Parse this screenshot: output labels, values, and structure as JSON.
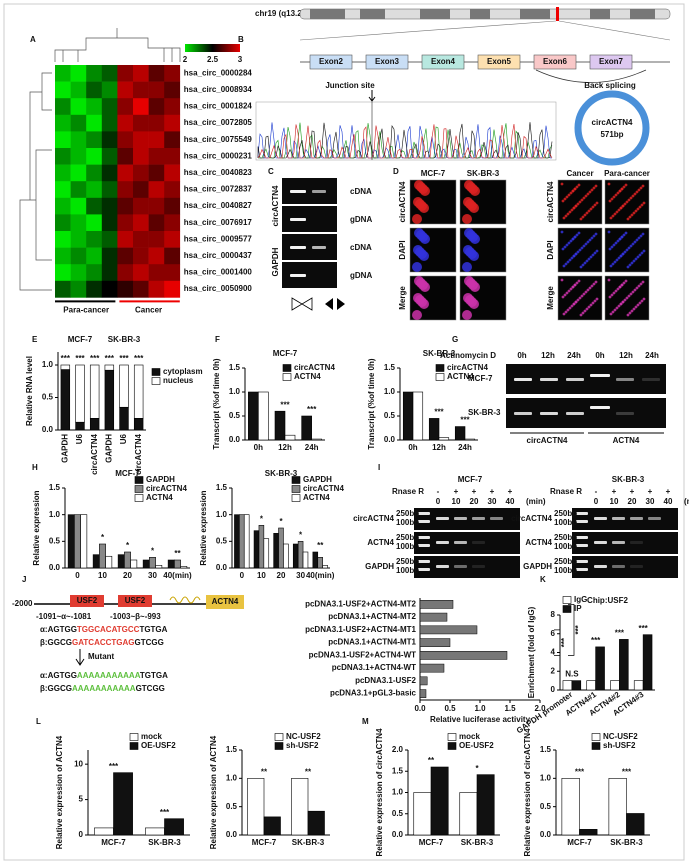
{
  "panel_letters": [
    "A",
    "B",
    "C",
    "D",
    "E",
    "F",
    "G",
    "H",
    "I",
    "J",
    "K",
    "L",
    "M"
  ],
  "heatmap": {
    "scale_ticks": [
      2,
      2.5,
      3
    ],
    "rows": [
      "hsa_circ_0000284",
      "hsa_circ_0008934",
      "hsa_circ_0001824",
      "hsa_circ_0072805",
      "hsa_circ_0075549",
      "hsa_circ_0000231",
      "hsa_circ_0040823",
      "hsa_circ_0072837",
      "hsa_circ_0040827",
      "hsa_circ_0076917",
      "hsa_circ_0009577",
      "hsa_circ_0000437",
      "hsa_circ_0001400",
      "hsa_circ_0050900"
    ],
    "groups": [
      "Para-cancer",
      "Cancer"
    ],
    "values": [
      [
        2.1,
        2.0,
        2.2,
        2.3,
        2.8,
        2.9,
        2.7,
        2.8
      ],
      [
        2.0,
        2.1,
        2.3,
        2.2,
        2.9,
        2.8,
        2.8,
        2.7
      ],
      [
        2.2,
        2.0,
        2.1,
        2.3,
        2.8,
        3.0,
        2.7,
        2.8
      ],
      [
        2.1,
        2.2,
        2.0,
        2.3,
        2.9,
        2.8,
        2.8,
        2.9
      ],
      [
        2.0,
        2.1,
        2.2,
        2.4,
        2.8,
        2.9,
        2.9,
        2.7
      ],
      [
        2.2,
        2.1,
        2.0,
        2.3,
        2.7,
        2.9,
        2.8,
        2.8
      ],
      [
        2.1,
        2.0,
        2.2,
        2.4,
        2.9,
        2.8,
        2.7,
        2.9
      ],
      [
        2.0,
        2.2,
        2.1,
        2.3,
        2.8,
        2.7,
        2.9,
        2.8
      ],
      [
        2.1,
        2.0,
        2.3,
        2.4,
        2.7,
        2.8,
        2.8,
        2.7
      ],
      [
        2.2,
        2.1,
        2.0,
        2.4,
        2.8,
        2.9,
        2.7,
        2.8
      ],
      [
        2.0,
        2.1,
        2.2,
        2.3,
        2.9,
        2.8,
        2.8,
        2.9
      ],
      [
        2.1,
        2.2,
        2.1,
        2.4,
        2.7,
        2.8,
        2.9,
        2.7
      ],
      [
        2.0,
        2.1,
        2.2,
        2.4,
        2.8,
        2.9,
        2.8,
        2.8
      ],
      [
        2.3,
        2.2,
        2.4,
        2.5,
        2.6,
        2.7,
        2.9,
        3.0
      ]
    ]
  },
  "splicing": {
    "chromosome": "chr19 (q13.2)",
    "exons": [
      "Exon2",
      "Exon3",
      "Exon4",
      "Exon5",
      "Exon6",
      "Exon7"
    ],
    "junction": "Junction site",
    "back_splicing": "Back splicing",
    "circle_name": "circACTN4",
    "circle_size": "571bp"
  },
  "gel_c": {
    "genes": [
      "circACTN4",
      "GAPDH"
    ],
    "rows": [
      "cDNA",
      "gDNA",
      "cDNA",
      "gDNA"
    ]
  },
  "fish": {
    "cells": [
      "MCF-7",
      "SK-BR-3"
    ],
    "tissues": [
      "Cancer",
      "Para-cancer"
    ],
    "stains": [
      "circACTN4",
      "DAPI",
      "Merge"
    ]
  },
  "gel_g": {
    "treatment": "Actinomycin D",
    "times": [
      "0h",
      "12h",
      "24h",
      "0h",
      "12h",
      "24h"
    ],
    "lines": [
      "MCF-7",
      "SK-BR-3"
    ],
    "genes": [
      "circACTN4",
      "ACTN4"
    ]
  },
  "gel_i": {
    "titles": [
      "MCF-7",
      "SK-BR-3"
    ],
    "rnase": "Rnase R",
    "signs": [
      "-",
      "+",
      "+",
      "+",
      "+"
    ],
    "times": [
      "0",
      "10",
      "20",
      "30",
      "40"
    ],
    "unit": "(min)",
    "genes": [
      "circACTN4",
      "ACTN4",
      "GAPDH"
    ],
    "ladder": [
      "250bp",
      "100bp"
    ]
  },
  "promoter": {
    "start": "-2000",
    "site": "USF2",
    "gene": "ACTN4",
    "positions": [
      "-1091~α~-1081",
      "-1003~β~-993"
    ],
    "alpha": {
      "pre": "α:AGTGG",
      "site": "TGGCACATGCC",
      "post": "TGTGA"
    },
    "beta": {
      "pre": "β:GGCG",
      "site": "GATCACCTGAG",
      "post": "GTCGG"
    },
    "mutant": "Mutant",
    "mutant_site": "AAAAAAAAAAA"
  },
  "chart_data": [
    {
      "type": "stacked_bar",
      "ylabel": "Relative RNA level",
      "groups": [
        "MCF-7",
        "SK-BR-3"
      ],
      "categories": [
        "GAPDH",
        "U6",
        "circACTN4",
        "GAPDH",
        "U6",
        "circACTN4"
      ],
      "series": [
        {
          "name": "cytoplasm",
          "color": "#111111",
          "values": [
            0.93,
            0.12,
            0.18,
            0.92,
            0.35,
            0.18
          ]
        },
        {
          "name": "nucleus",
          "color": "#ffffff",
          "values": [
            0.07,
            0.88,
            0.82,
            0.08,
            0.65,
            0.82
          ]
        }
      ],
      "ylim": [
        0,
        1.2
      ],
      "yticks": [
        {
          "value": 0,
          "label": "0.0"
        },
        {
          "value": 0.5,
          "label": "0.5"
        },
        {
          "value": 1,
          "label": "1.0"
        }
      ],
      "significance": [
        "***",
        "***",
        "***",
        "***",
        "***",
        "***"
      ]
    },
    {
      "type": "bar",
      "title": "MCF-7",
      "ylabel": "Transcript (%of time 0h)",
      "categories": [
        "0h",
        "12h",
        "24h"
      ],
      "series": [
        {
          "name": "circACTN4",
          "color": "#111111",
          "values": [
            1.0,
            0.6,
            0.5
          ]
        },
        {
          "name": "ACTN4",
          "color": "#ffffff",
          "values": [
            1.0,
            0.1,
            0.02
          ]
        }
      ],
      "ylim": [
        0,
        1.5
      ],
      "yticks": [
        {
          "value": 0,
          "label": "0.0"
        },
        {
          "value": 0.5,
          "label": "0.5"
        },
        {
          "value": 1,
          "label": "1.0"
        },
        {
          "value": 1.5,
          "label": "1.5"
        }
      ],
      "significance": [
        null,
        "***",
        "***"
      ]
    },
    {
      "type": "bar",
      "title": "SK-BR-3",
      "ylabel": "Transcript (%of time 0h)",
      "categories": [
        "0h",
        "12h",
        "24h"
      ],
      "series": [
        {
          "name": "circACTN4",
          "color": "#111111",
          "values": [
            1.0,
            0.45,
            0.28
          ]
        },
        {
          "name": "ACTN4",
          "color": "#ffffff",
          "values": [
            1.0,
            0.05,
            0.02
          ]
        }
      ],
      "ylim": [
        0,
        1.5
      ],
      "yticks": [
        {
          "value": 0,
          "label": "0.0"
        },
        {
          "value": 0.5,
          "label": "0.5"
        },
        {
          "value": 1,
          "label": "1.0"
        },
        {
          "value": 1.5,
          "label": "1.5"
        }
      ],
      "significance": [
        null,
        "***",
        "***"
      ]
    },
    {
      "type": "bar",
      "title": "MCF-7",
      "ylabel": "Relative expression",
      "categories": [
        "0",
        "10",
        "20",
        "30",
        "40(min)"
      ],
      "series": [
        {
          "name": "GAPDH",
          "color": "#111111",
          "values": [
            1.0,
            0.25,
            0.25,
            0.15,
            0.15
          ]
        },
        {
          "name": "circACTN4",
          "color": "#888888",
          "values": [
            1.0,
            0.45,
            0.3,
            0.2,
            0.15
          ]
        },
        {
          "name": "ACTN4",
          "color": "#ffffff",
          "values": [
            1.0,
            0.22,
            0.15,
            0.05,
            0.03
          ]
        }
      ],
      "ylim": [
        0,
        1.5
      ],
      "yticks": [
        {
          "value": 0,
          "label": "0.0"
        },
        {
          "value": 0.5,
          "label": "0.5"
        },
        {
          "value": 1,
          "label": "1.0"
        },
        {
          "value": 1.5,
          "label": "1.5"
        }
      ],
      "significance": [
        null,
        "*",
        "*",
        "*",
        "**"
      ]
    },
    {
      "type": "bar",
      "title": "SK-BR-3",
      "ylabel": "Relative expression",
      "categories": [
        "0",
        "10",
        "20",
        "30",
        "40(min)"
      ],
      "series": [
        {
          "name": "GAPDH",
          "color": "#111111",
          "values": [
            1.0,
            0.7,
            0.65,
            0.45,
            0.3
          ]
        },
        {
          "name": "circACTN4",
          "color": "#888888",
          "values": [
            1.0,
            0.8,
            0.75,
            0.5,
            0.2
          ]
        },
        {
          "name": "ACTN4",
          "color": "#ffffff",
          "values": [
            1.0,
            0.55,
            0.45,
            0.3,
            0.05
          ]
        }
      ],
      "ylim": [
        0,
        1.5
      ],
      "yticks": [
        {
          "value": 0,
          "label": "0.0"
        },
        {
          "value": 0.5,
          "label": "0.5"
        },
        {
          "value": 1,
          "label": "1.0"
        },
        {
          "value": 1.5,
          "label": "1.5"
        }
      ],
      "significance": [
        null,
        "*",
        "*",
        "*",
        "**"
      ]
    },
    {
      "type": "barh",
      "xlabel": "Relative luciferase activity",
      "categories": [
        "pcDNA3.1-USF2+ACTN4-MT2",
        "pcDNA3.1+ACTN4-MT2",
        "pcDNA3.1-USF2+ACTN4-MT1",
        "pcDNA3.1+ACTN4-MT1",
        "pcDNA3.1-USF2+ACTN4-WT",
        "pcDNA3.1+ACTN4-WT",
        "pcDNA3.1-USF2",
        "pcDNA3.1+pGL3-basic"
      ],
      "series": [
        {
          "color": "#777777",
          "values": [
            0.55,
            0.45,
            0.95,
            0.5,
            1.45,
            0.4,
            0.12,
            0.1
          ]
        }
      ],
      "xlim": [
        0,
        2
      ],
      "xticks": [
        {
          "value": 0,
          "label": "0.0"
        },
        {
          "value": 0.5,
          "label": "0.5"
        },
        {
          "value": 1,
          "label": "1.0"
        },
        {
          "value": 1.5,
          "label": "1.5"
        },
        {
          "value": 2,
          "label": "2.0"
        }
      ],
      "significance": [
        "***",
        "***"
      ]
    },
    {
      "type": "bar",
      "title": "Chip:USF2",
      "ylabel": "Enrichment (fold of IgG)",
      "categories": [
        "GAPDH promoter",
        "ACTN4#1",
        "ACTN4#2",
        "ACTN4#3"
      ],
      "series": [
        {
          "name": "IgG",
          "color": "#ffffff",
          "values": [
            1,
            1,
            1,
            1
          ]
        },
        {
          "name": "IP",
          "color": "#111111",
          "values": [
            1,
            4.6,
            5.4,
            5.9
          ]
        }
      ],
      "ylim": [
        0,
        8
      ],
      "yticks": [
        0,
        2,
        4,
        6,
        8
      ],
      "significance": [
        "N.S",
        "***",
        "***",
        "***"
      ]
    },
    {
      "type": "bar",
      "ylabel": "Relative expression of ACTN4",
      "categories": [
        "MCF-7",
        "SK-BR-3"
      ],
      "series": [
        {
          "name": "mock",
          "color": "#ffffff",
          "values": [
            1,
            1
          ]
        },
        {
          "name": "OE-USF2",
          "color": "#111111",
          "values": [
            8.8,
            2.3
          ]
        }
      ],
      "ylim": [
        0,
        12
      ],
      "yticks": [
        0,
        5,
        10
      ],
      "significance": [
        "***",
        "***"
      ]
    },
    {
      "type": "bar",
      "ylabel": "Relative expression of ACTN4",
      "categories": [
        "MCF-7",
        "SK-BR-3"
      ],
      "series": [
        {
          "name": "NC-USF2",
          "color": "#ffffff",
          "values": [
            1.0,
            1.0
          ]
        },
        {
          "name": "sh-USF2",
          "color": "#111111",
          "values": [
            0.32,
            0.42
          ]
        }
      ],
      "ylim": [
        0,
        1.5
      ],
      "yticks": [
        {
          "value": 0,
          "label": "0.0"
        },
        {
          "value": 0.5,
          "label": "0.5"
        },
        {
          "value": 1,
          "label": "1.0"
        },
        {
          "value": 1.5,
          "label": "1.5"
        }
      ],
      "significance": [
        "**",
        "**"
      ]
    },
    {
      "type": "bar",
      "ylabel": "Relative expression of circACTN4",
      "categories": [
        "MCF-7",
        "SK-BR-3"
      ],
      "series": [
        {
          "name": "mock",
          "color": "#ffffff",
          "values": [
            1.0,
            1.0
          ]
        },
        {
          "name": "OE-USF2",
          "color": "#111111",
          "values": [
            1.6,
            1.42
          ]
        }
      ],
      "ylim": [
        0,
        2
      ],
      "yticks": [
        {
          "value": 0,
          "label": "0.0"
        },
        {
          "value": 0.5,
          "label": "0.5"
        },
        {
          "value": 1,
          "label": "1.0"
        },
        {
          "value": 1.5,
          "label": "1.5"
        },
        {
          "value": 2,
          "label": "2.0"
        }
      ],
      "significance": [
        "**",
        "*"
      ]
    },
    {
      "type": "bar",
      "ylabel": "Relative expression of circACTN4",
      "categories": [
        "MCF-7",
        "SK-BR-3"
      ],
      "series": [
        {
          "name": "NC-USF2",
          "color": "#ffffff",
          "values": [
            1.0,
            1.0
          ]
        },
        {
          "name": "sh-USF2",
          "color": "#111111",
          "values": [
            0.1,
            0.38
          ]
        }
      ],
      "ylim": [
        0,
        1.5
      ],
      "yticks": [
        {
          "value": 0,
          "label": "0.0"
        },
        {
          "value": 0.5,
          "label": "0.5"
        },
        {
          "value": 1,
          "label": "1.0"
        },
        {
          "value": 1.5,
          "label": "1.5"
        }
      ],
      "significance": [
        "***",
        "***"
      ]
    }
  ]
}
